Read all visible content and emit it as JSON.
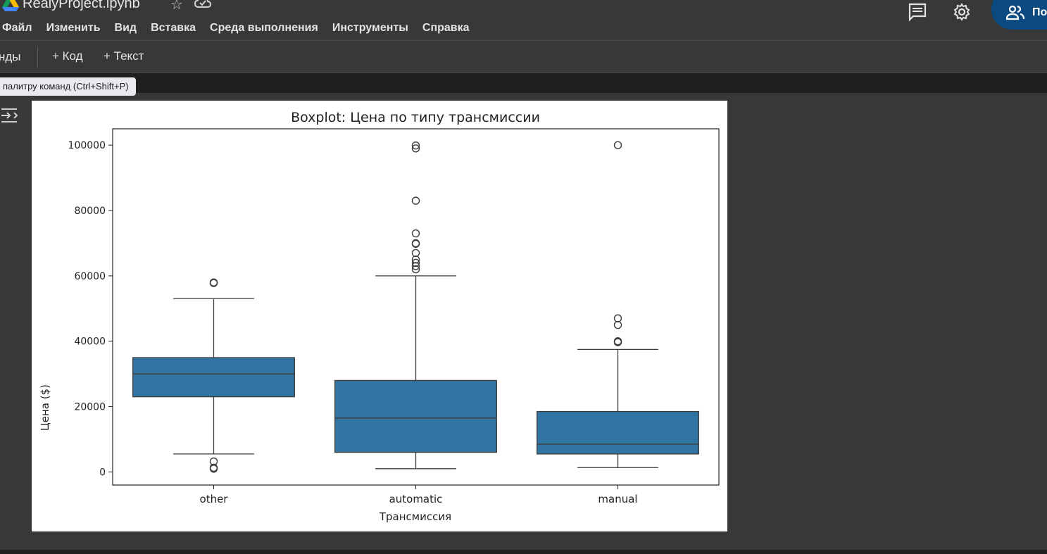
{
  "app": {
    "title": "RealyProject.ipynb",
    "logo_icon": "google-drive-icon",
    "star_icon": "star-icon",
    "cloud_icon": "cloud-sync-icon"
  },
  "menu": {
    "items": [
      "Файл",
      "Изменить",
      "Вид",
      "Вставка",
      "Среда выполнения",
      "Инструменты",
      "Справка"
    ]
  },
  "header_right": {
    "comment_icon": "comment-icon",
    "settings_icon": "gear-icon",
    "share_label": "По",
    "share_icon": "people-icon",
    "share_color": "#0b4a80"
  },
  "toolbar": {
    "commands_label": "нды",
    "add_code_label": "+ Код",
    "add_text_label": "+ Текст"
  },
  "tooltip": {
    "text": "палитру команд (Ctrl+Shift+P)"
  },
  "cell": {
    "output_icon": "output-expand-icon"
  },
  "chart_data": {
    "type": "box",
    "title": "Boxplot: Цена по типу трансмиссии",
    "xlabel": "Трансмиссия",
    "ylabel": "Цена ($)",
    "ylim": [
      -4000,
      105000
    ],
    "yticks": [
      0,
      20000,
      40000,
      60000,
      80000,
      100000
    ],
    "ytick_labels": [
      "0",
      "20000",
      "40000",
      "60000",
      "80000",
      "100000"
    ],
    "color": "#3274a1",
    "categories": [
      "other",
      "automatic",
      "manual"
    ],
    "boxes": [
      {
        "category": "other",
        "whisker_low": 5500,
        "q1": 23000,
        "median": 30000,
        "q3": 35000,
        "whisker_high": 53000,
        "outliers": [
          57800,
          58000,
          3200,
          1300,
          1000
        ]
      },
      {
        "category": "automatic",
        "whisker_low": 1000,
        "q1": 6000,
        "median": 16500,
        "q3": 28000,
        "whisker_high": 60000,
        "outliers": [
          99900,
          99000,
          83000,
          73000,
          70000,
          69800,
          67000,
          65000,
          64000,
          63000,
          62000
        ]
      },
      {
        "category": "manual",
        "whisker_low": 1300,
        "q1": 5500,
        "median": 8500,
        "q3": 18500,
        "whisker_high": 37500,
        "outliers": [
          100000,
          47000,
          45000,
          40000,
          39700
        ]
      }
    ]
  }
}
